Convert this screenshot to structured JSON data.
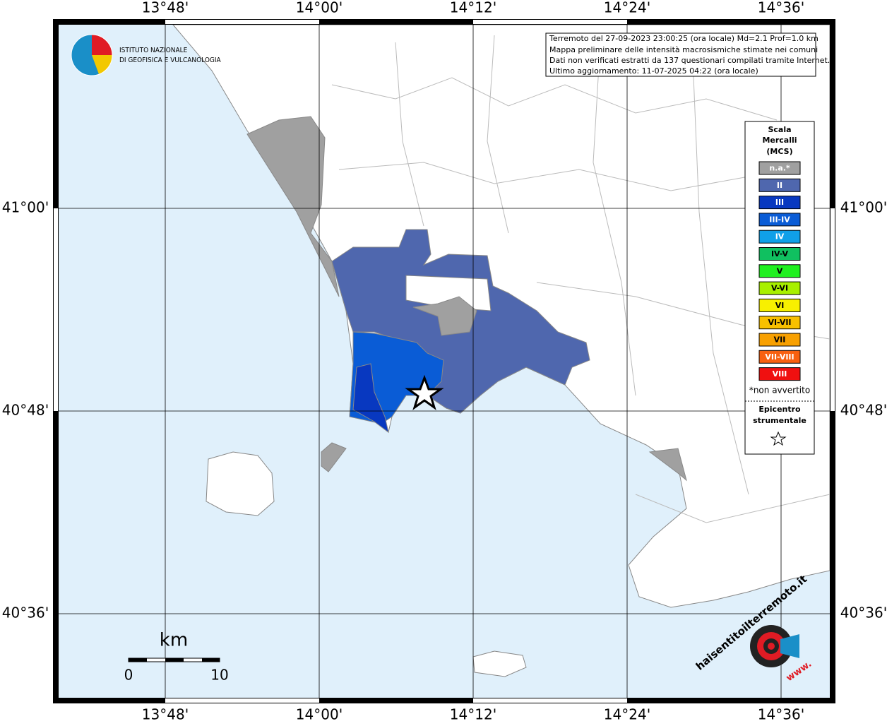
{
  "header": {
    "line1": "Terremoto del 27-09-2023 23:00:25 (ora locale) Md=2.1 Prof=1.0 km",
    "line2": "Mappa preliminare delle intensità macrosismiche stimate nei comuni",
    "line3": "Dati non verificati estratti da 137 questionari compilati tramite Internet.",
    "line4": "Ultimo aggiornamento: 11-07-2025 04:22 (ora locale)"
  },
  "logo": {
    "line1": "ISTITUTO NAZIONALE",
    "line2": "DI GEOFISICA E VULCANOLOGIA"
  },
  "lon_labels": [
    "13°48'",
    "14°00'",
    "14°12'",
    "14°24'",
    "14°36'"
  ],
  "lat_labels": [
    "41°00'",
    "40°48'",
    "40°36'"
  ],
  "legend": {
    "title1": "Scala",
    "title2": "Mercalli",
    "title3": "(MCS)",
    "entries": [
      {
        "label": "n.a.*",
        "color": "#a0a0a0"
      },
      {
        "label": "II",
        "color": "#4f67ae"
      },
      {
        "label": "III",
        "color": "#0838c0"
      },
      {
        "label": "III-IV",
        "color": "#0a5cd6"
      },
      {
        "label": "IV",
        "color": "#10a0e8"
      },
      {
        "label": "IV-V",
        "color": "#10c060"
      },
      {
        "label": "V",
        "color": "#20f020"
      },
      {
        "label": "V-VI",
        "color": "#a8f000"
      },
      {
        "label": "VI",
        "color": "#f8f000"
      },
      {
        "label": "VI-VII",
        "color": "#f8c000"
      },
      {
        "label": "VII",
        "color": "#f8a000"
      },
      {
        "label": "VII-VIII",
        "color": "#f86010"
      },
      {
        "label": "VIII",
        "color": "#f01010"
      }
    ],
    "note": "*non avvertito",
    "epi1": "Epicentro",
    "epi2": "strumentale"
  },
  "scale": {
    "unit": "km",
    "min": "0",
    "max": "10"
  },
  "badge": {
    "text": "haisentitoilterremoto.it",
    "www": "www."
  }
}
